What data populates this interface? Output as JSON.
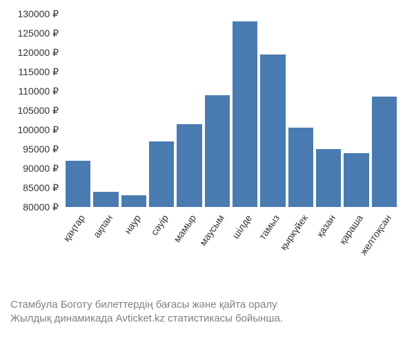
{
  "chart": {
    "type": "bar",
    "categories": [
      "қаңтар",
      "ақпан",
      "наур",
      "сәуір",
      "мамыр",
      "маусым",
      "шілде",
      "тамыз",
      "қыркүйек",
      "қазан",
      "қараша",
      "желтоқсан"
    ],
    "values": [
      92000,
      84000,
      83000,
      97000,
      101500,
      109000,
      128000,
      119500,
      100500,
      95000,
      94000,
      108500
    ],
    "bar_color": "#4a7bb0",
    "currency_suffix": " ₽",
    "y_ticks": [
      80000,
      85000,
      90000,
      95000,
      100000,
      105000,
      110000,
      115000,
      120000,
      125000,
      130000
    ],
    "y_min": 80000,
    "y_max": 130000,
    "background_color": "#ffffff",
    "tick_font_color": "#333333",
    "tick_font_size": 14,
    "x_label_rotation_deg": -55
  },
  "caption": {
    "line1": "Стамбула Боготу билеттердің бағасы және қайта оралу",
    "line2": "Жылдық динамикада Avticket.kz статистикасы бойынша.",
    "font_color": "#808080",
    "font_size": 15
  }
}
